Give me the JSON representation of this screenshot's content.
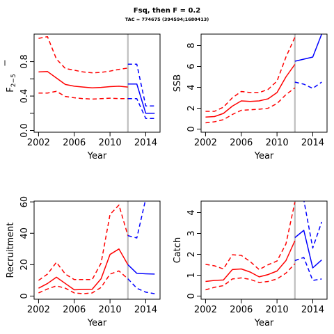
{
  "title": "Fsq, then F = 0.2",
  "subtitle": "TAC = 774675 (394594;1680413)",
  "colors": {
    "historic": "#ff0000",
    "projection": "#0000ff",
    "divider": "#bebebe"
  },
  "chart_data": [
    {
      "type": "line",
      "xlabel": "Year",
      "ylabel": "F2-5",
      "ylabel_main": "F",
      "ylabel_sub": "2−5",
      "xlim": [
        2001.5,
        2015.6
      ],
      "ylim": [
        -0.02,
        1.12
      ],
      "xticks": [
        2002,
        2006,
        2010,
        2014
      ],
      "yticks": [
        0.0,
        0.2,
        0.4,
        0.6,
        0.8
      ],
      "ytick_labels": [
        "0.0",
        "",
        "0.4",
        "",
        "0.8"
      ],
      "divider_x": 2012,
      "series": [
        {
          "color": "red",
          "style": "solid",
          "x": [
            2002,
            2003,
            2004,
            2005,
            2006,
            2007,
            2008,
            2009,
            2010,
            2011,
            2012
          ],
          "y": [
            0.68,
            0.685,
            0.61,
            0.535,
            0.515,
            0.505,
            0.495,
            0.5,
            0.51,
            0.515,
            0.505
          ]
        },
        {
          "color": "red",
          "style": "dashed",
          "x": [
            2002,
            2003,
            2004,
            2005,
            2006,
            2007,
            2008,
            2009,
            2010,
            2011,
            2012
          ],
          "y": [
            1.07,
            1.09,
            0.83,
            0.72,
            0.7,
            0.68,
            0.67,
            0.675,
            0.69,
            0.71,
            0.725
          ]
        },
        {
          "color": "red",
          "style": "dashed",
          "x": [
            2002,
            2003,
            2004,
            2005,
            2006,
            2007,
            2008,
            2009,
            2010,
            2011,
            2012
          ],
          "y": [
            0.435,
            0.435,
            0.455,
            0.395,
            0.38,
            0.37,
            0.365,
            0.37,
            0.375,
            0.37,
            0.37
          ]
        },
        {
          "color": "blue",
          "style": "solid",
          "x": [
            2012,
            2013,
            2014,
            2015
          ],
          "y": [
            0.54,
            0.54,
            0.2,
            0.2
          ]
        },
        {
          "color": "blue",
          "style": "dashed",
          "x": [
            2012,
            2013,
            2014,
            2015
          ],
          "y": [
            0.77,
            0.77,
            0.285,
            0.285
          ]
        },
        {
          "color": "blue",
          "style": "dashed",
          "x": [
            2012,
            2013,
            2014,
            2015
          ],
          "y": [
            0.37,
            0.37,
            0.14,
            0.14
          ]
        }
      ]
    },
    {
      "type": "line",
      "xlabel": "Year",
      "ylabel": "SSB",
      "xlim": [
        2001.5,
        2015.6
      ],
      "ylim": [
        -0.3,
        9.1
      ],
      "xticks": [
        2002,
        2006,
        2010,
        2014
      ],
      "yticks": [
        0,
        2,
        4,
        6,
        8
      ],
      "divider_x": 2012,
      "series": [
        {
          "color": "red",
          "style": "solid",
          "x": [
            2002,
            2003,
            2004,
            2005,
            2006,
            2007,
            2008,
            2009,
            2010,
            2011,
            2012
          ],
          "y": [
            1.15,
            1.2,
            1.5,
            2.2,
            2.7,
            2.65,
            2.7,
            2.9,
            3.5,
            5.0,
            6.2
          ]
        },
        {
          "color": "red",
          "style": "dashed",
          "x": [
            2002,
            2003,
            2004,
            2005,
            2006,
            2007,
            2008,
            2009,
            2010,
            2011,
            2012
          ],
          "y": [
            1.7,
            1.7,
            2.1,
            3.0,
            3.6,
            3.5,
            3.5,
            3.8,
            4.6,
            6.9,
            8.8
          ]
        },
        {
          "color": "red",
          "style": "dashed",
          "x": [
            2002,
            2003,
            2004,
            2005,
            2006,
            2007,
            2008,
            2009,
            2010,
            2011,
            2012
          ],
          "y": [
            0.6,
            0.7,
            0.9,
            1.4,
            1.8,
            1.85,
            1.9,
            2.0,
            2.45,
            3.3,
            3.95
          ]
        },
        {
          "color": "blue",
          "style": "solid",
          "x": [
            2012,
            2013,
            2014,
            2015
          ],
          "y": [
            6.5,
            6.7,
            6.9,
            9.1
          ]
        },
        {
          "color": "blue",
          "style": "dashed",
          "x": [
            2012,
            2013,
            2014,
            2015
          ],
          "y": [
            4.5,
            4.3,
            3.9,
            4.5
          ]
        }
      ]
    },
    {
      "type": "line",
      "xlabel": "Year",
      "ylabel": "Recruitment",
      "xlim": [
        2001.5,
        2015.6
      ],
      "ylim": [
        -2,
        60.5
      ],
      "xticks": [
        2002,
        2006,
        2010,
        2014
      ],
      "yticks": [
        0,
        20,
        40,
        60
      ],
      "divider_x": 2012,
      "series": [
        {
          "color": "red",
          "style": "solid",
          "x": [
            2002,
            2003,
            2004,
            2005,
            2006,
            2007,
            2008,
            2009,
            2010,
            2011,
            2012
          ],
          "y": [
            5,
            8,
            12,
            8,
            4,
            4.2,
            4.3,
            11,
            26.5,
            30,
            20
          ]
        },
        {
          "color": "red",
          "style": "dashed",
          "x": [
            2002,
            2003,
            2004,
            2005,
            2006,
            2007,
            2008,
            2009,
            2010,
            2011,
            2012
          ],
          "y": [
            10,
            14,
            21.5,
            14,
            10.5,
            10.5,
            10.5,
            21,
            52,
            58,
            38.5
          ]
        },
        {
          "color": "red",
          "style": "dashed",
          "x": [
            2002,
            2003,
            2004,
            2005,
            2006,
            2007,
            2008,
            2009,
            2010,
            2011,
            2012
          ],
          "y": [
            2,
            4.5,
            6.5,
            5,
            2,
            1.5,
            2,
            5.5,
            14,
            16,
            11
          ]
        },
        {
          "color": "blue",
          "style": "solid",
          "x": [
            2012,
            2013,
            2014,
            2015
          ],
          "y": [
            20,
            14.5,
            14.2,
            14
          ]
        },
        {
          "color": "blue",
          "style": "dashed",
          "x": [
            2012,
            2013,
            2014,
            2015
          ],
          "y": [
            38.5,
            37,
            62,
            70
          ]
        },
        {
          "color": "blue",
          "style": "dashed",
          "x": [
            2012,
            2013,
            2014,
            2015
          ],
          "y": [
            11,
            5,
            2.5,
            1.5
          ]
        }
      ]
    },
    {
      "type": "line",
      "xlabel": "Year",
      "ylabel": "Catch",
      "xlim": [
        2001.5,
        2015.6
      ],
      "ylim": [
        -0.15,
        4.55
      ],
      "xticks": [
        2002,
        2006,
        2010,
        2014
      ],
      "yticks": [
        0,
        1,
        2,
        3,
        4
      ],
      "divider_x": 2012,
      "series": [
        {
          "color": "red",
          "style": "solid",
          "x": [
            2002,
            2003,
            2004,
            2005,
            2006,
            2007,
            2008,
            2009,
            2010,
            2011,
            2012
          ],
          "y": [
            0.7,
            0.75,
            0.77,
            1.27,
            1.3,
            1.15,
            0.92,
            1.03,
            1.2,
            1.7,
            2.65
          ]
        },
        {
          "color": "red",
          "style": "dashed",
          "x": [
            2002,
            2003,
            2004,
            2005,
            2006,
            2007,
            2008,
            2009,
            2010,
            2011,
            2012
          ],
          "y": [
            1.52,
            1.45,
            1.3,
            1.98,
            1.95,
            1.65,
            1.27,
            1.5,
            1.68,
            2.5,
            4.5
          ]
        },
        {
          "color": "red",
          "style": "dashed",
          "x": [
            2002,
            2003,
            2004,
            2005,
            2006,
            2007,
            2008,
            2009,
            2010,
            2011,
            2012
          ],
          "y": [
            0.3,
            0.42,
            0.5,
            0.82,
            0.87,
            0.8,
            0.65,
            0.7,
            0.82,
            1.1,
            1.55
          ]
        },
        {
          "color": "blue",
          "style": "solid",
          "x": [
            2012,
            2013,
            2014,
            2015
          ],
          "y": [
            2.8,
            3.15,
            1.35,
            1.73
          ]
        },
        {
          "color": "blue",
          "style": "dashed",
          "x": [
            2012,
            2013,
            2014,
            2015
          ],
          "y": [
            4.6,
            4.6,
            2.3,
            3.55
          ]
        },
        {
          "color": "blue",
          "style": "dashed",
          "x": [
            2012,
            2013,
            2014,
            2015
          ],
          "y": [
            1.7,
            1.85,
            0.75,
            0.82
          ]
        }
      ]
    }
  ]
}
